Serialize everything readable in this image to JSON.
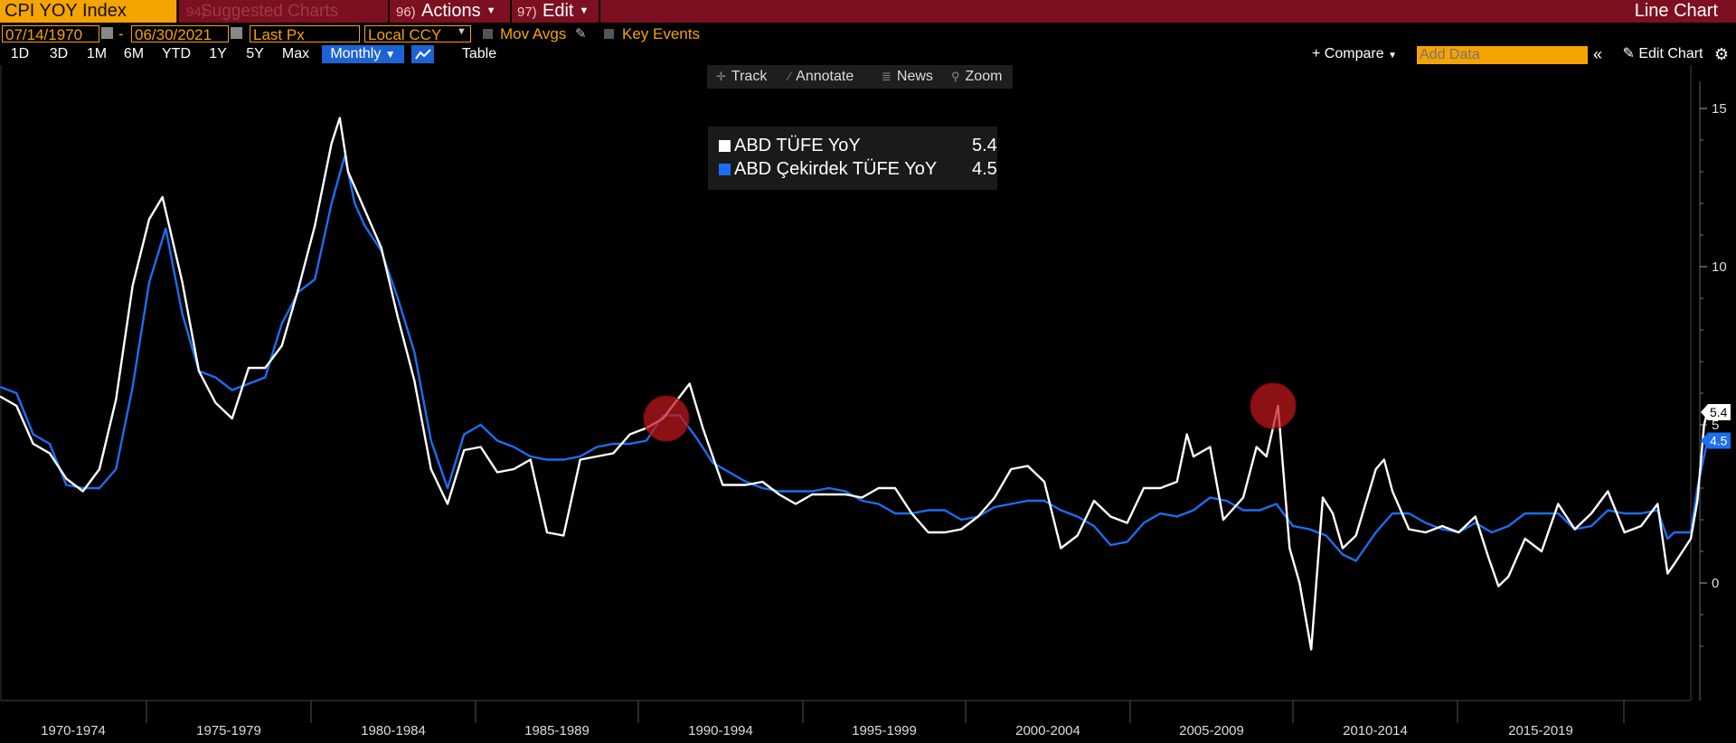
{
  "header": {
    "ticker": "CPI YOY Index",
    "suggested_num": "94)",
    "suggested": "Suggested Charts",
    "actions_num": "96)",
    "actions": "Actions",
    "edit_num": "97)",
    "edit": "Edit",
    "chart_type": "Line Chart"
  },
  "controls": {
    "start_date": "07/14/1970",
    "end_date": "06/30/2021",
    "dash": "-",
    "price_field": "Last Px",
    "currency": "Local CCY",
    "mov_avgs": "Mov Avgs",
    "key_events": "Key Events"
  },
  "periods": [
    "1D",
    "3D",
    "1M",
    "6M",
    "YTD",
    "1Y",
    "5Y",
    "Max"
  ],
  "frequency": "Monthly",
  "table_label": "Table",
  "compare_label": "+ Compare",
  "add_data_placeholder": "Add Data",
  "edit_chart_label": "Edit Chart",
  "tools": [
    "Track",
    "Annotate",
    "News",
    "Zoom"
  ],
  "colors": {
    "headline": "#ffffff",
    "core": "#1c6ef2",
    "highlight": "#c0181c",
    "header_bg": "#7d1020",
    "accent": "#f5a300"
  },
  "chart_data": {
    "type": "line",
    "x_tick_labels": [
      "1970-1974",
      "1975-1979",
      "1980-1984",
      "1985-1989",
      "1990-1994",
      "1995-1999",
      "2000-2004",
      "2005-2009",
      "2010-2014",
      "2015-2019"
    ],
    "y_tick_labels": [
      "15",
      "10",
      "5",
      "0"
    ],
    "ylim": [
      -2.5,
      15.5
    ],
    "xlim": [
      1970.0,
      2021.0
    ],
    "legend_position": "top-center",
    "last_value_labels": [
      "5.4",
      "4.5"
    ],
    "highlighted_points": [
      {
        "x": 1990.1,
        "y": 5.2
      },
      {
        "x": 2008.4,
        "y": 5.6
      }
    ],
    "series": [
      {
        "name": "ABD TÜFE YoY",
        "last_value": "5.4",
        "color": "#ffffff",
        "points": [
          [
            1970.0,
            5.9
          ],
          [
            1970.5,
            5.6
          ],
          [
            1971.0,
            4.4
          ],
          [
            1971.5,
            4.1
          ],
          [
            1972.0,
            3.3
          ],
          [
            1972.5,
            2.9
          ],
          [
            1973.0,
            3.6
          ],
          [
            1973.5,
            5.8
          ],
          [
            1974.0,
            9.4
          ],
          [
            1974.5,
            11.5
          ],
          [
            1974.9,
            12.2
          ],
          [
            1975.5,
            9.5
          ],
          [
            1976.0,
            6.7
          ],
          [
            1976.5,
            5.7
          ],
          [
            1977.0,
            5.2
          ],
          [
            1977.5,
            6.8
          ],
          [
            1978.0,
            6.8
          ],
          [
            1978.5,
            7.5
          ],
          [
            1979.0,
            9.3
          ],
          [
            1979.5,
            11.3
          ],
          [
            1980.0,
            13.9
          ],
          [
            1980.25,
            14.7
          ],
          [
            1980.5,
            13.0
          ],
          [
            1981.0,
            11.8
          ],
          [
            1981.5,
            10.6
          ],
          [
            1982.0,
            8.4
          ],
          [
            1982.5,
            6.4
          ],
          [
            1983.0,
            3.6
          ],
          [
            1983.5,
            2.5
          ],
          [
            1984.0,
            4.2
          ],
          [
            1984.5,
            4.3
          ],
          [
            1985.0,
            3.5
          ],
          [
            1985.5,
            3.6
          ],
          [
            1986.0,
            3.9
          ],
          [
            1986.5,
            1.6
          ],
          [
            1987.0,
            1.5
          ],
          [
            1987.5,
            3.9
          ],
          [
            1988.0,
            4.0
          ],
          [
            1988.5,
            4.1
          ],
          [
            1989.0,
            4.7
          ],
          [
            1989.5,
            4.9
          ],
          [
            1990.0,
            5.2
          ],
          [
            1990.8,
            6.3
          ],
          [
            1991.2,
            4.9
          ],
          [
            1991.8,
            3.1
          ],
          [
            1992.5,
            3.1
          ],
          [
            1993.0,
            3.2
          ],
          [
            1993.5,
            2.8
          ],
          [
            1994.0,
            2.5
          ],
          [
            1994.5,
            2.8
          ],
          [
            1995.0,
            2.8
          ],
          [
            1995.5,
            2.8
          ],
          [
            1996.0,
            2.7
          ],
          [
            1996.5,
            3.0
          ],
          [
            1997.0,
            3.0
          ],
          [
            1997.5,
            2.2
          ],
          [
            1998.0,
            1.6
          ],
          [
            1998.5,
            1.6
          ],
          [
            1999.0,
            1.7
          ],
          [
            1999.5,
            2.1
          ],
          [
            2000.0,
            2.7
          ],
          [
            2000.5,
            3.6
          ],
          [
            2001.0,
            3.7
          ],
          [
            2001.5,
            3.2
          ],
          [
            2002.0,
            1.1
          ],
          [
            2002.5,
            1.5
          ],
          [
            2003.0,
            2.6
          ],
          [
            2003.5,
            2.1
          ],
          [
            2004.0,
            1.9
          ],
          [
            2004.5,
            3.0
          ],
          [
            2005.0,
            3.0
          ],
          [
            2005.5,
            3.2
          ],
          [
            2005.8,
            4.7
          ],
          [
            2006.0,
            4.0
          ],
          [
            2006.5,
            4.3
          ],
          [
            2006.9,
            2.0
          ],
          [
            2007.5,
            2.7
          ],
          [
            2007.9,
            4.3
          ],
          [
            2008.2,
            4.0
          ],
          [
            2008.55,
            5.6
          ],
          [
            2008.9,
            1.1
          ],
          [
            2009.2,
            0.0
          ],
          [
            2009.55,
            -2.1
          ],
          [
            2009.9,
            2.7
          ],
          [
            2010.2,
            2.2
          ],
          [
            2010.5,
            1.1
          ],
          [
            2010.9,
            1.5
          ],
          [
            2011.5,
            3.6
          ],
          [
            2011.75,
            3.9
          ],
          [
            2012.0,
            2.9
          ],
          [
            2012.5,
            1.7
          ],
          [
            2013.0,
            1.6
          ],
          [
            2013.5,
            1.8
          ],
          [
            2014.0,
            1.6
          ],
          [
            2014.5,
            2.1
          ],
          [
            2014.9,
            0.8
          ],
          [
            2015.2,
            -0.1
          ],
          [
            2015.5,
            0.2
          ],
          [
            2016.0,
            1.4
          ],
          [
            2016.5,
            1.0
          ],
          [
            2017.0,
            2.5
          ],
          [
            2017.5,
            1.7
          ],
          [
            2018.0,
            2.2
          ],
          [
            2018.5,
            2.9
          ],
          [
            2019.0,
            1.6
          ],
          [
            2019.5,
            1.8
          ],
          [
            2020.0,
            2.5
          ],
          [
            2020.3,
            0.3
          ],
          [
            2020.5,
            0.6
          ],
          [
            2021.0,
            1.4
          ],
          [
            2021.2,
            2.6
          ],
          [
            2021.4,
            5.0
          ],
          [
            2021.5,
            5.4
          ]
        ]
      },
      {
        "name": "ABD Çekirdek TÜFE YoY",
        "last_value": "4.5",
        "color": "#1c6ef2",
        "points": [
          [
            1970.0,
            6.2
          ],
          [
            1970.5,
            6.0
          ],
          [
            1971.0,
            4.7
          ],
          [
            1971.5,
            4.4
          ],
          [
            1972.0,
            3.1
          ],
          [
            1972.5,
            3.0
          ],
          [
            1973.0,
            3.0
          ],
          [
            1973.5,
            3.6
          ],
          [
            1974.0,
            6.2
          ],
          [
            1974.5,
            9.5
          ],
          [
            1975.0,
            11.2
          ],
          [
            1975.5,
            8.5
          ],
          [
            1976.0,
            6.7
          ],
          [
            1976.5,
            6.5
          ],
          [
            1977.0,
            6.1
          ],
          [
            1977.5,
            6.3
          ],
          [
            1978.0,
            6.5
          ],
          [
            1978.5,
            8.2
          ],
          [
            1979.0,
            9.2
          ],
          [
            1979.5,
            9.6
          ],
          [
            1980.0,
            12.0
          ],
          [
            1980.4,
            13.5
          ],
          [
            1980.7,
            12.0
          ],
          [
            1981.0,
            11.3
          ],
          [
            1981.5,
            10.5
          ],
          [
            1982.0,
            9.0
          ],
          [
            1982.5,
            7.3
          ],
          [
            1983.0,
            4.5
          ],
          [
            1983.5,
            3.0
          ],
          [
            1984.0,
            4.7
          ],
          [
            1984.5,
            5.0
          ],
          [
            1985.0,
            4.5
          ],
          [
            1985.5,
            4.3
          ],
          [
            1986.0,
            4.0
          ],
          [
            1986.5,
            3.9
          ],
          [
            1987.0,
            3.9
          ],
          [
            1987.5,
            4.0
          ],
          [
            1988.0,
            4.3
          ],
          [
            1988.5,
            4.4
          ],
          [
            1989.0,
            4.4
          ],
          [
            1989.5,
            4.5
          ],
          [
            1990.0,
            5.3
          ],
          [
            1990.5,
            5.3
          ],
          [
            1991.0,
            4.6
          ],
          [
            1991.5,
            3.8
          ],
          [
            1992.0,
            3.5
          ],
          [
            1992.5,
            3.2
          ],
          [
            1993.0,
            3.0
          ],
          [
            1993.5,
            2.9
          ],
          [
            1994.0,
            2.9
          ],
          [
            1994.5,
            2.9
          ],
          [
            1995.0,
            3.0
          ],
          [
            1995.5,
            2.9
          ],
          [
            1996.0,
            2.6
          ],
          [
            1996.5,
            2.5
          ],
          [
            1997.0,
            2.2
          ],
          [
            1997.5,
            2.2
          ],
          [
            1998.0,
            2.3
          ],
          [
            1998.5,
            2.3
          ],
          [
            1999.0,
            2.0
          ],
          [
            1999.5,
            2.1
          ],
          [
            2000.0,
            2.4
          ],
          [
            2000.5,
            2.5
          ],
          [
            2001.0,
            2.6
          ],
          [
            2001.5,
            2.6
          ],
          [
            2002.0,
            2.3
          ],
          [
            2002.5,
            2.1
          ],
          [
            2003.0,
            1.8
          ],
          [
            2003.5,
            1.2
          ],
          [
            2004.0,
            1.3
          ],
          [
            2004.5,
            1.9
          ],
          [
            2005.0,
            2.2
          ],
          [
            2005.5,
            2.1
          ],
          [
            2006.0,
            2.3
          ],
          [
            2006.5,
            2.7
          ],
          [
            2007.0,
            2.6
          ],
          [
            2007.5,
            2.3
          ],
          [
            2008.0,
            2.3
          ],
          [
            2008.5,
            2.5
          ],
          [
            2009.0,
            1.8
          ],
          [
            2009.5,
            1.7
          ],
          [
            2010.0,
            1.5
          ],
          [
            2010.5,
            0.9
          ],
          [
            2010.9,
            0.7
          ],
          [
            2011.5,
            1.6
          ],
          [
            2012.0,
            2.2
          ],
          [
            2012.5,
            2.2
          ],
          [
            2013.0,
            1.9
          ],
          [
            2013.5,
            1.7
          ],
          [
            2014.0,
            1.6
          ],
          [
            2014.5,
            1.9
          ],
          [
            2015.0,
            1.6
          ],
          [
            2015.5,
            1.8
          ],
          [
            2016.0,
            2.2
          ],
          [
            2016.5,
            2.2
          ],
          [
            2017.0,
            2.2
          ],
          [
            2017.5,
            1.7
          ],
          [
            2018.0,
            1.8
          ],
          [
            2018.5,
            2.3
          ],
          [
            2019.0,
            2.2
          ],
          [
            2019.5,
            2.2
          ],
          [
            2020.0,
            2.3
          ],
          [
            2020.3,
            1.4
          ],
          [
            2020.5,
            1.6
          ],
          [
            2021.0,
            1.6
          ],
          [
            2021.2,
            3.0
          ],
          [
            2021.4,
            4.0
          ],
          [
            2021.5,
            4.5
          ]
        ]
      }
    ]
  }
}
